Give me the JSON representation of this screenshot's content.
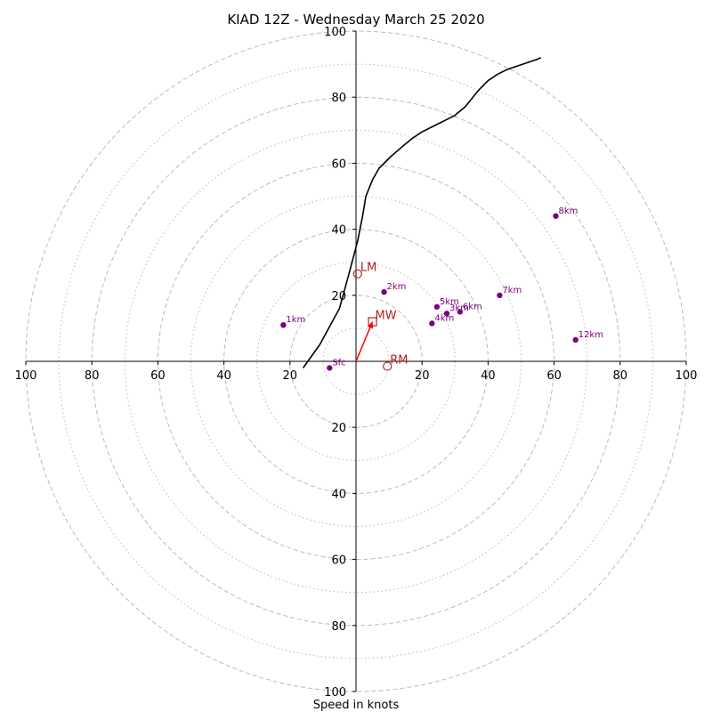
{
  "chart_data": {
    "type": "line",
    "title": "KIAD 12Z - Wednesday March 25 2020",
    "xlabel": "Speed in knots",
    "ylabel": "",
    "xlim": [
      -100,
      100
    ],
    "ylim": [
      -100,
      100
    ],
    "grid": true,
    "ring_major": [
      20,
      40,
      60,
      80,
      100
    ],
    "ring_minor": [
      10,
      30,
      50,
      70,
      90
    ],
    "x_ticks": [
      {
        "value": -100,
        "label": "100"
      },
      {
        "value": -80,
        "label": "80"
      },
      {
        "value": -60,
        "label": "60"
      },
      {
        "value": -40,
        "label": "40"
      },
      {
        "value": -20,
        "label": "20"
      },
      {
        "value": 20,
        "label": "20"
      },
      {
        "value": 40,
        "label": "40"
      },
      {
        "value": 60,
        "label": "60"
      },
      {
        "value": 80,
        "label": "80"
      },
      {
        "value": 100,
        "label": "100"
      }
    ],
    "y_ticks": [
      {
        "value": 100,
        "label": "100"
      },
      {
        "value": 80,
        "label": "80"
      },
      {
        "value": 60,
        "label": "60"
      },
      {
        "value": 40,
        "label": "40"
      },
      {
        "value": 20,
        "label": "20"
      },
      {
        "value": -20,
        "label": "20"
      },
      {
        "value": -40,
        "label": "40"
      },
      {
        "value": -60,
        "label": "60"
      },
      {
        "value": -80,
        "label": "80"
      },
      {
        "value": -100,
        "label": "100"
      }
    ],
    "colors": {
      "hodograph": "#000000",
      "height_marker": "#800080",
      "motion": "#b22222",
      "mean_wind_vector": "#ff0000",
      "grid": "#bbbbbb"
    },
    "hodograph_trace": {
      "x": [
        -16,
        -11,
        -5,
        -2,
        0.5,
        2,
        3,
        5,
        7,
        10.5,
        14,
        17,
        20,
        23,
        27,
        30,
        30.5,
        33,
        35,
        37,
        40,
        43,
        46,
        49,
        52,
        55,
        56
      ],
      "y": [
        -2,
        5,
        16,
        27,
        36.5,
        44,
        50,
        55,
        58.5,
        62,
        65,
        67.5,
        69.5,
        71,
        73,
        74.5,
        75,
        77,
        79.5,
        82,
        85,
        87,
        88.5,
        89.5,
        90.5,
        91.5,
        92
      ]
    },
    "height_markers": [
      {
        "label": "Sfc",
        "x": -8,
        "y": -2
      },
      {
        "label": "1km",
        "x": -22,
        "y": 11
      },
      {
        "label": "2km",
        "x": 8.5,
        "y": 21
      },
      {
        "label": "3km",
        "x": 27.5,
        "y": 14.5
      },
      {
        "label": "4km",
        "x": 23,
        "y": 11.5
      },
      {
        "label": "5km",
        "x": 24.5,
        "y": 16.5
      },
      {
        "label": "6km",
        "x": 31.5,
        "y": 15
      },
      {
        "label": "7km",
        "x": 43.5,
        "y": 20
      },
      {
        "label": "8km",
        "x": 60.5,
        "y": 44
      },
      {
        "label": "12km",
        "x": 66.5,
        "y": 6.5
      }
    ],
    "storm_motion": [
      {
        "label": "LM",
        "x": 0.5,
        "y": 26.5
      },
      {
        "label": "MW",
        "x": 5,
        "y": 12
      },
      {
        "label": "RM",
        "x": 9.5,
        "y": -1.5
      }
    ]
  }
}
